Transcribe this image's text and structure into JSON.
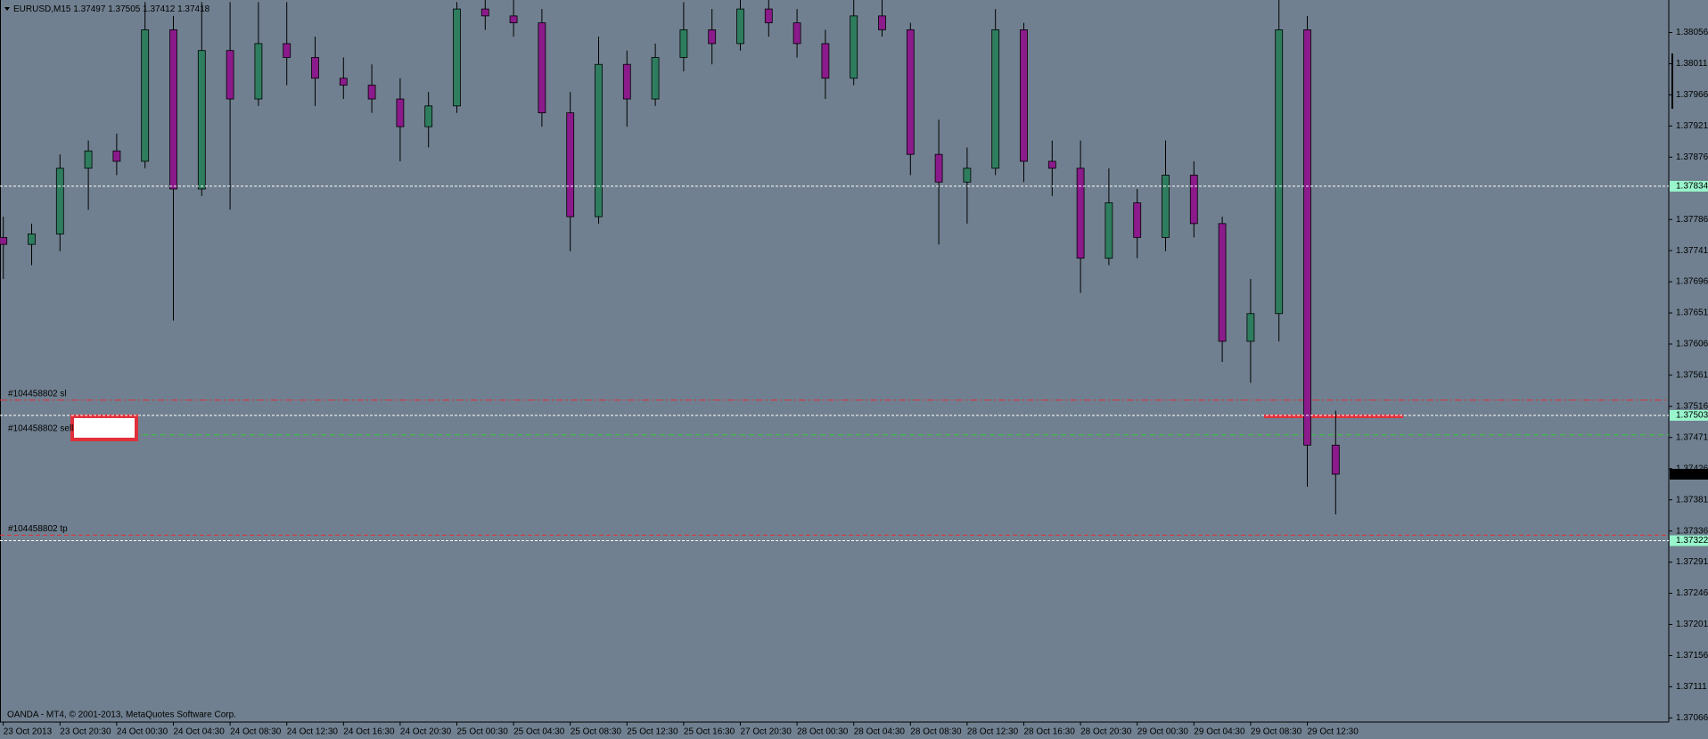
{
  "chart_data": {
    "type": "candlestick",
    "title": "EURUSD,M15",
    "header_values": [
      1.37497,
      1.37505,
      1.37412,
      1.37418
    ],
    "footer": "OANDA - MT4, © 2001-2013, MetaQuotes Software Corp.",
    "up_color": "#2e7d5e",
    "down_color": "#8b1a8b",
    "ylim": [
      1.3706,
      1.38103
    ],
    "yticks": [
      1.38056,
      1.38011,
      1.37966,
      1.37921,
      1.37876,
      1.37786,
      1.37741,
      1.37696,
      1.37651,
      1.37606,
      1.37561,
      1.37516,
      1.37471,
      1.37426,
      1.37381,
      1.37336,
      1.37291,
      1.37246,
      1.37201,
      1.37156,
      1.37111,
      1.37066
    ],
    "x_labels": [
      "23 Oct 2013",
      "23 Oct 20:30",
      "24 Oct 00:30",
      "24 Oct 04:30",
      "24 Oct 08:30",
      "24 Oct 12:30",
      "24 Oct 16:30",
      "24 Oct 20:30",
      "25 Oct 00:30",
      "25 Oct 04:30",
      "25 Oct 08:30",
      "25 Oct 12:30",
      "25 Oct 16:30",
      "27 Oct 20:30",
      "28 Oct 00:30",
      "28 Oct 04:30",
      "28 Oct 08:30",
      "28 Oct 12:30",
      "28 Oct 16:30",
      "28 Oct 20:30",
      "29 Oct 00:30",
      "29 Oct 04:30",
      "29 Oct 08:30",
      "29 Oct 12:30"
    ],
    "open": [
      1.3776,
      1.3775,
      1.37765,
      1.3786,
      1.37885,
      1.3787,
      1.3806,
      1.3783,
      1.3803,
      1.3796,
      1.3804,
      1.3802,
      1.3799,
      1.3798,
      1.3796,
      1.3792,
      1.3795,
      1.3809,
      1.3808,
      1.3807,
      1.3794,
      1.3779,
      1.3801,
      1.3796,
      1.3802,
      1.3806,
      1.3804,
      1.3809,
      1.3807,
      1.3804,
      1.3799,
      1.3808,
      1.3806,
      1.3788,
      1.3784,
      1.3786,
      1.3806,
      1.3787,
      1.3786,
      1.3773,
      1.3781,
      1.3776,
      1.3785,
      1.3778,
      1.3761,
      1.3765,
      1.3806,
      1.3746
    ],
    "high": [
      1.3779,
      1.3778,
      1.3788,
      1.379,
      1.3791,
      1.381,
      1.3808,
      1.381,
      1.381,
      1.381,
      1.381,
      1.3805,
      1.3802,
      1.3801,
      1.3799,
      1.3797,
      1.381,
      1.38103,
      1.38103,
      1.3809,
      1.3797,
      1.3805,
      1.3803,
      1.3804,
      1.381,
      1.3809,
      1.38103,
      1.38103,
      1.3809,
      1.3806,
      1.38103,
      1.38103,
      1.3807,
      1.3793,
      1.3789,
      1.3809,
      1.3807,
      1.379,
      1.379,
      1.3786,
      1.3783,
      1.379,
      1.3787,
      1.3779,
      1.377,
      1.38103,
      1.3808,
      1.3751
    ],
    "low": [
      1.377,
      1.3772,
      1.3774,
      1.378,
      1.3785,
      1.3786,
      1.3764,
      1.3782,
      1.378,
      1.3795,
      1.3798,
      1.3795,
      1.3796,
      1.3794,
      1.3787,
      1.3789,
      1.3794,
      1.3806,
      1.3805,
      1.3792,
      1.3774,
      1.3778,
      1.3792,
      1.3795,
      1.38,
      1.3801,
      1.3803,
      1.3805,
      1.3802,
      1.3796,
      1.3798,
      1.3805,
      1.3785,
      1.3775,
      1.3778,
      1.3785,
      1.3784,
      1.3782,
      1.3768,
      1.3772,
      1.3773,
      1.3774,
      1.3776,
      1.3758,
      1.3755,
      1.3761,
      1.374,
      1.3736
    ],
    "close": [
      1.3775,
      1.37765,
      1.3786,
      1.37885,
      1.3787,
      1.3806,
      1.3783,
      1.3803,
      1.3796,
      1.3804,
      1.3802,
      1.3799,
      1.3798,
      1.3796,
      1.3792,
      1.3795,
      1.3809,
      1.3808,
      1.3807,
      1.3794,
      1.3779,
      1.3801,
      1.3796,
      1.3802,
      1.3806,
      1.3804,
      1.3809,
      1.3807,
      1.3804,
      1.3799,
      1.3808,
      1.3806,
      1.3788,
      1.3784,
      1.3786,
      1.3806,
      1.3787,
      1.3786,
      1.3773,
      1.3781,
      1.3776,
      1.3785,
      1.3778,
      1.3761,
      1.3765,
      1.3806,
      1.3746,
      1.37418
    ],
    "hlines": [
      {
        "value": 1.37834,
        "label_color": "#98f5cc"
      },
      {
        "value": 1.37503,
        "label_color": "#98f5cc"
      },
      {
        "value": 1.37322,
        "label_color": "#98f5cc"
      }
    ],
    "current_price": 1.37418,
    "orders": [
      {
        "label": "#104458802 sl",
        "value": 1.37525,
        "color": "#e0303a"
      },
      {
        "label": "#104458802 sell",
        "value": 1.37475,
        "color": "#33cc33"
      },
      {
        "label": "#104458802 tp",
        "value": 1.3733,
        "color": "#e0303a"
      }
    ]
  }
}
